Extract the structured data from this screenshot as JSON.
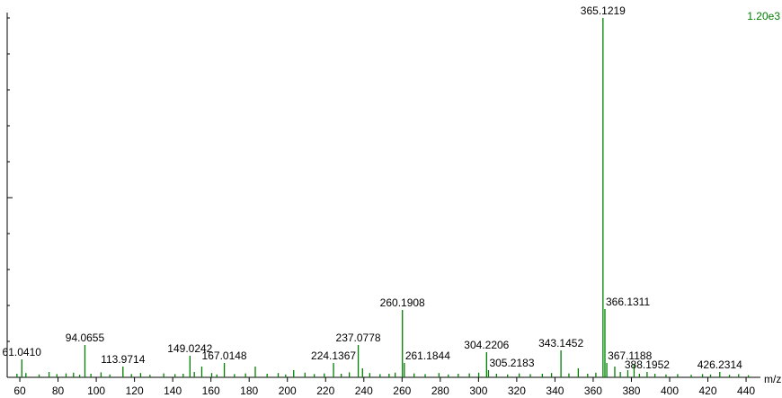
{
  "chart_data": {
    "type": "spectrum",
    "intensity_label": "1.20e3",
    "x_axis_label": "m/z",
    "color": "#008000",
    "xlim": [
      53.4,
      447.5
    ],
    "ylim": [
      0,
      100
    ],
    "xticks": [
      60,
      80,
      100,
      120,
      140,
      160,
      180,
      200,
      220,
      240,
      260,
      280,
      300,
      320,
      340,
      360,
      380,
      400,
      420,
      440
    ],
    "yticks": [
      0,
      10,
      20,
      30,
      40,
      50,
      60,
      70,
      80,
      90,
      100
    ],
    "x": [
      58.5,
      61.041,
      63.2,
      70.1,
      75.3,
      79.4,
      84.2,
      88.1,
      91.3,
      94.0655,
      97.2,
      102.5,
      107.1,
      113.9714,
      118.4,
      123.2,
      128.1,
      135.3,
      141.2,
      145.5,
      149.0242,
      151.3,
      155.2,
      160.4,
      163.1,
      167.0148,
      172.3,
      178.1,
      183.2,
      189.4,
      195.2,
      199.1,
      203.3,
      209.2,
      214.1,
      219.3,
      224.1367,
      228.2,
      232.4,
      237.0778,
      239.3,
      243.1,
      248.5,
      253.2,
      256.4,
      260.1908,
      261.1844,
      266.3,
      272.1,
      279.3,
      284.2,
      289.4,
      295.2,
      300.1,
      304.2206,
      305.2183,
      309.4,
      315.2,
      321.3,
      327.1,
      333.4,
      338.2,
      343.1452,
      347.3,
      352.2,
      357.1,
      361.4,
      365.1219,
      366.1311,
      367.1188,
      371.3,
      374.2,
      378.1,
      381.4,
      384.2,
      388.1952,
      392.3,
      398.1,
      404.2,
      411.3,
      417.2,
      421.4,
      426.2314,
      431.3,
      436.1,
      441.2
    ],
    "values": [
      1.0,
      5.0,
      1.2,
      0.8,
      1.5,
      0.9,
      1.1,
      1.3,
      0.7,
      9.0,
      1.0,
      1.4,
      0.8,
      3.0,
      0.9,
      1.2,
      0.7,
      1.1,
      0.9,
      1.0,
      6.0,
      1.5,
      3.0,
      1.2,
      0.8,
      4.0,
      0.9,
      1.1,
      3.0,
      1.0,
      1.2,
      0.8,
      2.0,
      1.3,
      0.9,
      1.1,
      4.0,
      1.0,
      1.4,
      9.0,
      2.5,
      1.2,
      0.9,
      1.0,
      1.3,
      18.75,
      4.0,
      1.1,
      0.9,
      1.2,
      0.8,
      1.0,
      1.1,
      1.3,
      7.0,
      2.0,
      1.0,
      0.8,
      1.1,
      0.9,
      1.0,
      1.2,
      7.5,
      1.1,
      2.5,
      1.0,
      1.3,
      100,
      19.0,
      4.0,
      3.0,
      1.5,
      2.0,
      3.5,
      1.0,
      1.5,
      1.0,
      0.8,
      0.9,
      0.7,
      0.9,
      0.8,
      1.5,
      0.7,
      0.9,
      0.6
    ],
    "x_labels": [
      null,
      "61.0410",
      null,
      null,
      null,
      null,
      null,
      null,
      null,
      "94.0655",
      null,
      null,
      null,
      "113.9714",
      null,
      null,
      null,
      null,
      null,
      null,
      "149.0242",
      null,
      null,
      null,
      null,
      "167.0148",
      null,
      null,
      null,
      null,
      null,
      null,
      null,
      null,
      null,
      null,
      "224.1367",
      null,
      null,
      "237.0778",
      null,
      null,
      null,
      null,
      null,
      "260.1908",
      "261.1844",
      null,
      null,
      null,
      null,
      null,
      null,
      null,
      "304.2206",
      "305.2183",
      null,
      null,
      null,
      null,
      null,
      null,
      "343.1452",
      null,
      null,
      null,
      null,
      "365.1219",
      "366.1311",
      "367.1188",
      null,
      null,
      null,
      null,
      null,
      "388.1952",
      null,
      null,
      null,
      null,
      null,
      null,
      "426.2314",
      null,
      null,
      null
    ]
  }
}
